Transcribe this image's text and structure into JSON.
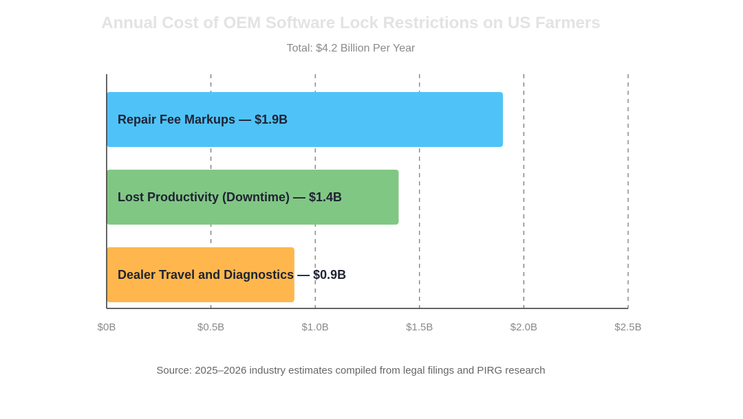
{
  "chart_data": {
    "type": "bar",
    "orientation": "horizontal",
    "title": "Annual Cost of OEM Software Lock Restrictions on US Farmers",
    "subtitle": "Total: $4.2 Billion Per Year",
    "source": "Source: 2025–2026 industry estimates compiled from legal filings and PIRG research",
    "xlim": [
      0,
      2.5
    ],
    "xtick_values": [
      0,
      0.5,
      1.0,
      1.5,
      2.0,
      2.5
    ],
    "xtick_labels": [
      "$0B",
      "$0.5B",
      "$1.0B",
      "$1.5B",
      "$2.0B",
      "$2.5B"
    ],
    "grid": "vertical dashed",
    "bars": [
      {
        "label": "Repair Fee Markups — $1.9B",
        "value": 1.9,
        "color": "#4fc3f7"
      },
      {
        "label": "Lost Productivity (Downtime) — $1.4B",
        "value": 1.4,
        "color": "#81c784"
      },
      {
        "label": "Dealer Travel and Diagnostics — $0.9B",
        "value": 0.9,
        "color": "#ffb74d"
      }
    ]
  }
}
